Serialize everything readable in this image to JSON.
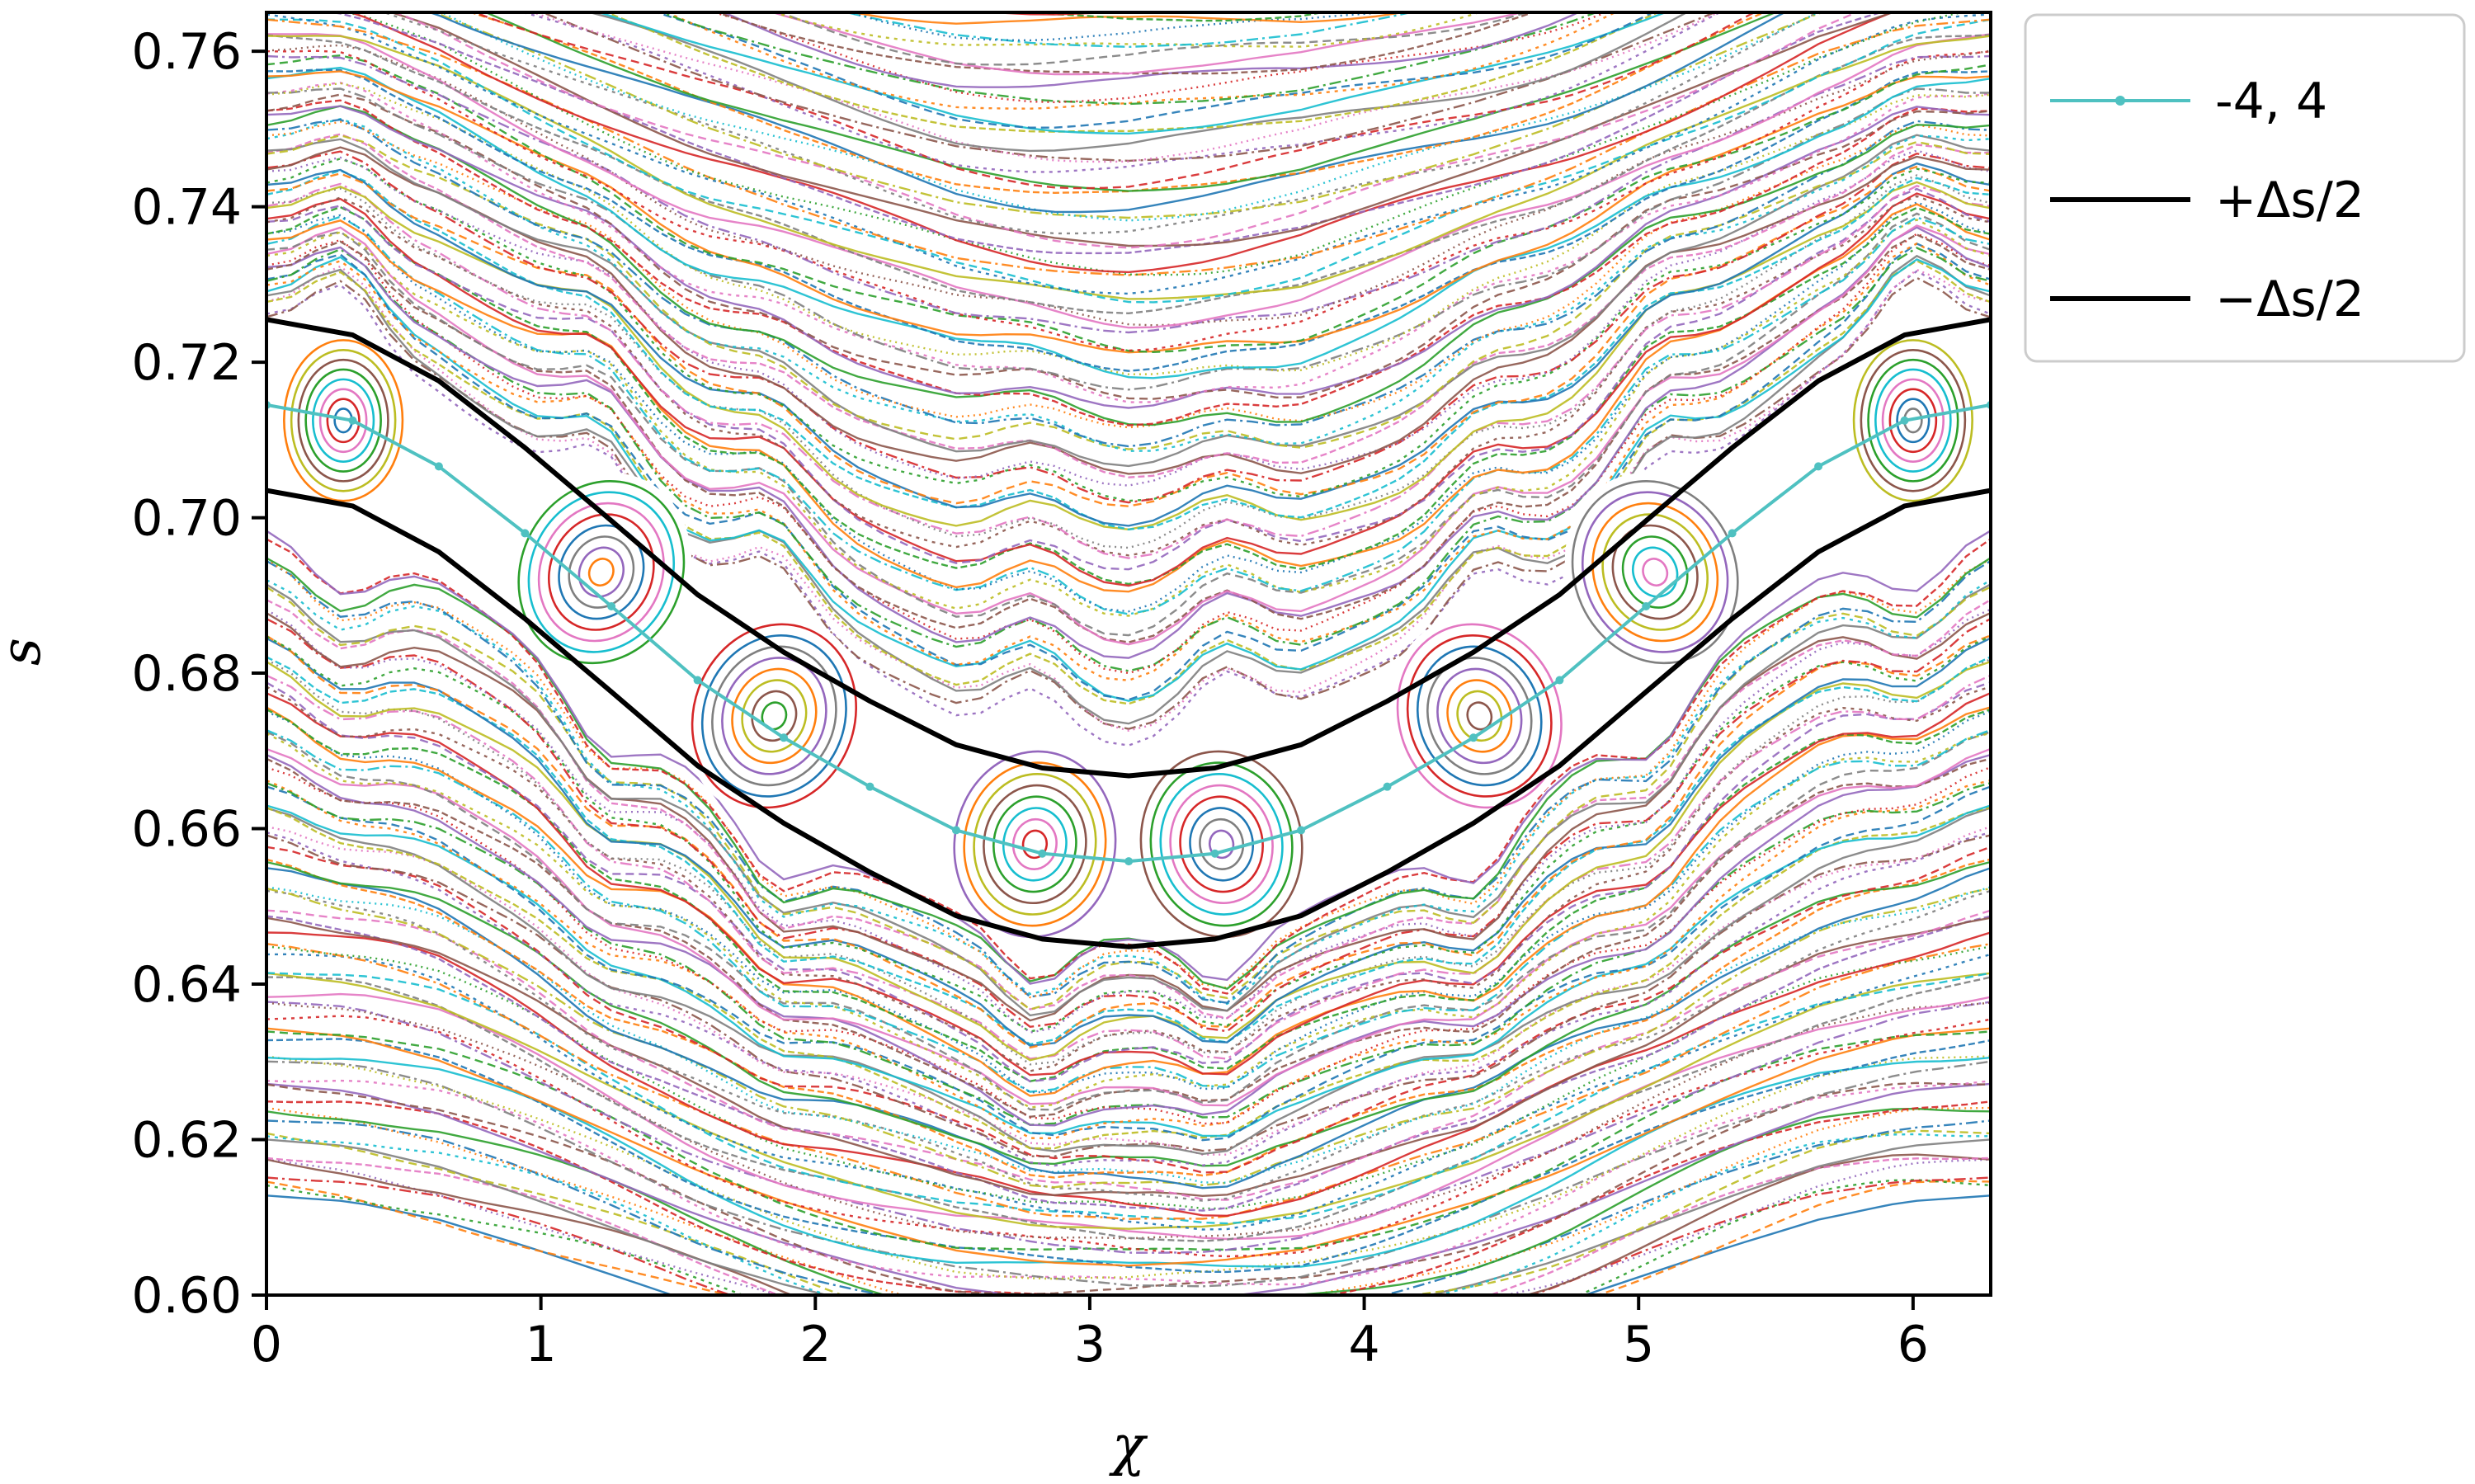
{
  "chart_data": {
    "type": "line",
    "title": "",
    "xlabel": "χ",
    "ylabel": "s",
    "xlim": [
      0,
      6.283
    ],
    "ylim": [
      0.6,
      0.765
    ],
    "x_ticks": [
      0,
      1,
      2,
      3,
      4,
      5,
      6
    ],
    "x_tick_labels": [
      "0",
      "1",
      "2",
      "3",
      "4",
      "5",
      "6"
    ],
    "y_ticks": [
      0.6,
      0.62,
      0.64,
      0.66,
      0.68,
      0.7,
      0.72,
      0.74,
      0.76
    ],
    "y_tick_labels": [
      "0.60",
      "0.62",
      "0.64",
      "0.66",
      "0.68",
      "0.70",
      "0.72",
      "0.74",
      "0.76"
    ],
    "grid": false,
    "legend_position": "outside-top-right",
    "series": [
      {
        "name": "-4, 4",
        "color": "#4fc1c1",
        "style": "solid-with-markers",
        "x": [
          0,
          0.314,
          0.628,
          0.942,
          1.257,
          1.571,
          1.885,
          2.199,
          2.513,
          2.827,
          3.142,
          3.456,
          3.77,
          4.084,
          4.398,
          4.712,
          5.027,
          5.341,
          5.655,
          5.969,
          6.283
        ],
        "y": [
          0.7145,
          0.7125,
          0.7066,
          0.698,
          0.6886,
          0.6791,
          0.6717,
          0.6654,
          0.6598,
          0.6568,
          0.6558,
          0.6568,
          0.6598,
          0.6654,
          0.6717,
          0.6791,
          0.6886,
          0.698,
          0.7066,
          0.7125,
          0.7145
        ]
      },
      {
        "name": "+Δs/2",
        "color": "#000000",
        "style": "solid",
        "x": [
          0,
          0.314,
          0.628,
          0.942,
          1.257,
          1.571,
          1.885,
          2.199,
          2.513,
          2.827,
          3.142,
          3.456,
          3.77,
          4.084,
          4.398,
          4.712,
          5.027,
          5.341,
          5.655,
          5.969,
          6.283
        ],
        "y": [
          0.7255,
          0.7235,
          0.7176,
          0.709,
          0.6996,
          0.6901,
          0.6827,
          0.6764,
          0.6708,
          0.6678,
          0.6668,
          0.6678,
          0.6708,
          0.6764,
          0.6827,
          0.6901,
          0.6996,
          0.709,
          0.7176,
          0.7235,
          0.7255
        ]
      },
      {
        "name": "−Δs/2",
        "color": "#000000",
        "style": "solid",
        "x": [
          0,
          0.314,
          0.628,
          0.942,
          1.257,
          1.571,
          1.885,
          2.199,
          2.513,
          2.827,
          3.142,
          3.456,
          3.77,
          4.084,
          4.398,
          4.712,
          5.027,
          5.341,
          5.655,
          5.969,
          6.283
        ],
        "y": [
          0.7035,
          0.7015,
          0.6956,
          0.687,
          0.6776,
          0.6681,
          0.6607,
          0.6544,
          0.6488,
          0.6458,
          0.6448,
          0.6458,
          0.6488,
          0.6544,
          0.6607,
          0.6681,
          0.6776,
          0.687,
          0.6956,
          0.7015,
          0.7035
        ]
      }
    ],
    "island_centers": {
      "x": [
        0.28,
        1.22,
        1.85,
        2.8,
        3.48,
        4.42,
        5.06,
        6.0
      ],
      "y": [
        0.7125,
        0.693,
        0.6745,
        0.658,
        0.658,
        0.6745,
        0.693,
        0.7125
      ]
    },
    "background_palette": [
      "#1f77b4",
      "#ff7f0e",
      "#2ca02c",
      "#d62728",
      "#9467bd",
      "#8c564b",
      "#e377c2",
      "#7f7f7f",
      "#bcbd22",
      "#17becf"
    ]
  }
}
